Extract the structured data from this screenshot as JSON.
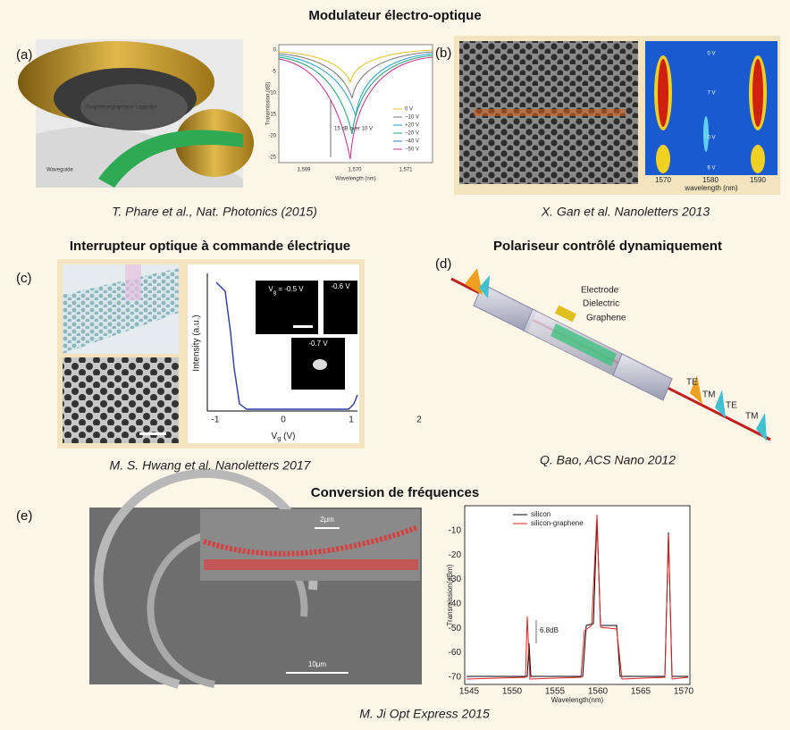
{
  "headings": [
    "Modulateur électro-optique",
    "Interrupteur optique à commande électrique",
    "Polariseur contrôlé dynamiquement",
    "Conversion de fréquences"
  ],
  "panels": {
    "a": {
      "label": "(a)",
      "illustration_labels": [
        "Graphene/graphene capacitor",
        "Waveguide"
      ],
      "plot": {
        "y_label": "Transmission (dB)",
        "x_label": "Wavelength (nm)",
        "x_ticks": [
          "1,569",
          "1,570",
          "1,571"
        ],
        "y_ticks": [
          "0",
          "-5",
          "-10",
          "-15",
          "-20",
          "-25"
        ],
        "legend": [
          "0 V",
          "−10 V",
          "+20 V",
          "−20 V",
          "−40 V",
          "−50 V"
        ],
        "annotation": "15 dB over 10 V"
      },
      "citation": "T. Phare et al., Nat. Photonics (2015)"
    },
    "b": {
      "label": "(b)",
      "map_labels": [
        "0 V",
        "7 V",
        "0 V",
        "6 V"
      ],
      "x_ticks": [
        "1570",
        "1580",
        "1590"
      ],
      "x_label": "wavelength (nm)",
      "citation": "X. Gan et al. Nanoletters 2013"
    },
    "c": {
      "label": "(c)",
      "y_label": "Intensity (a.u.)",
      "x_label": {
        "base": "V",
        "sub": "g",
        "rest": " (V)"
      },
      "x_ticks": [
        "-1",
        "0",
        "1",
        "2"
      ],
      "insets": [
        {
          "base": "V",
          "sub": "g",
          "rest": " = -0.5 V"
        },
        {
          "base": "",
          "sub": "",
          "rest": "-0.6 V"
        },
        {
          "base": "",
          "sub": "",
          "rest": "-0.7 V"
        }
      ],
      "citation": "M. S. Hwang et al. Nanoletters 2017"
    },
    "d": {
      "label": "(d)",
      "labels": [
        "Electrode",
        "Dielectric",
        "Graphene",
        "TE",
        "TM",
        "TE",
        "TM"
      ],
      "citation": "Q. Bao, ACS Nano 2012"
    },
    "e": {
      "label": "(e)",
      "scale_bars": [
        "2μm",
        "10μm"
      ],
      "plot": {
        "legend": [
          "silicon",
          "silicon-graphene"
        ],
        "annotation": "6.8dB",
        "y_label": "Transmission(dBm)",
        "x_label": "Wavelength(nm)",
        "y_ticks": [
          "-10",
          "-20",
          "-30",
          "-40",
          "-50",
          "-60",
          "-70"
        ],
        "x_ticks": [
          "1545",
          "1550",
          "1555",
          "1560",
          "1565",
          "1570"
        ]
      },
      "citation": "M. Ji Opt Express 2015"
    }
  }
}
